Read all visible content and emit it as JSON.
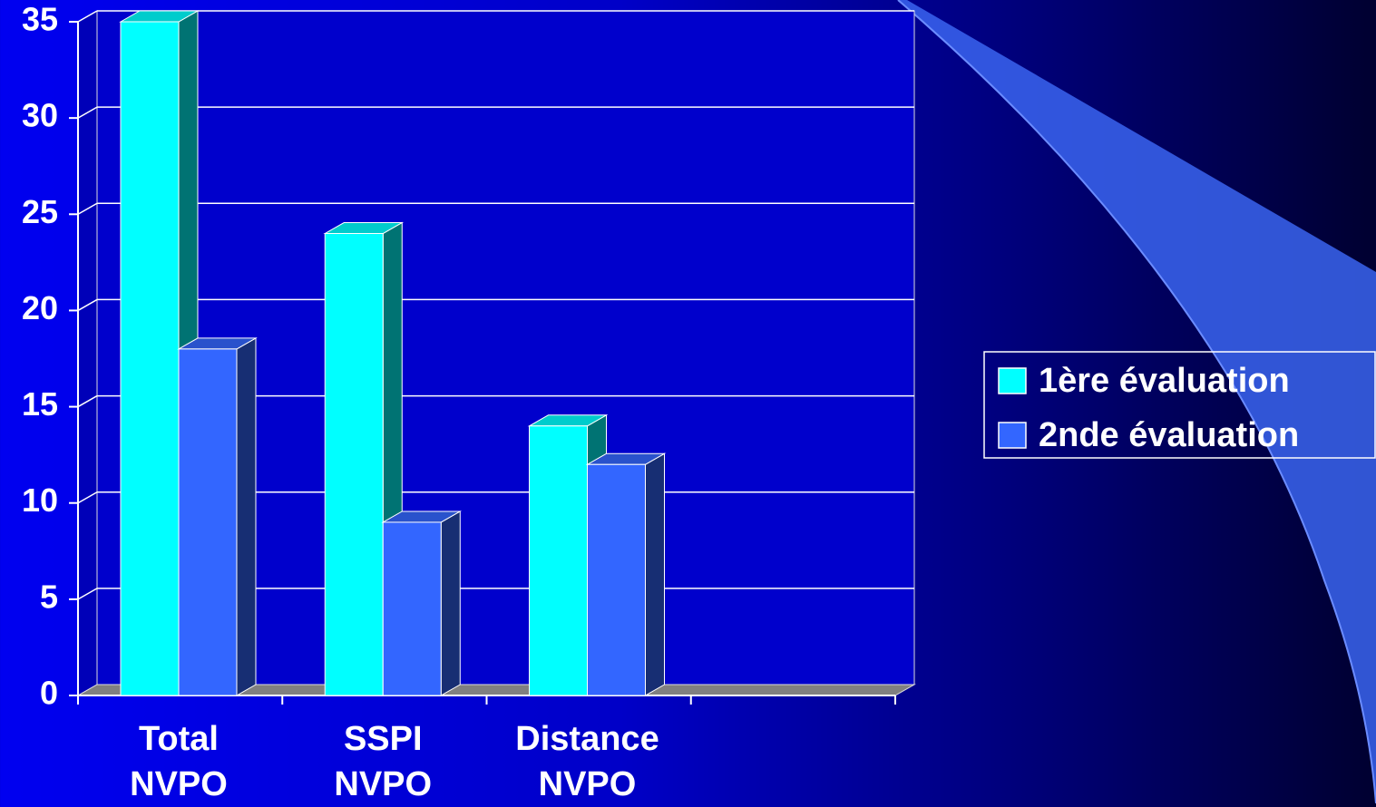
{
  "chart_data": {
    "type": "bar3d",
    "categories": [
      "Total NVPO",
      "SSPI NVPO",
      "Distance NVPO",
      null
    ],
    "series": [
      {
        "name": "1ère évaluation",
        "color": "#00ffff",
        "values": [
          35,
          24,
          14,
          null
        ]
      },
      {
        "name": "2nde évaluation",
        "color": "#3366ff",
        "values": [
          18,
          9,
          12,
          null
        ]
      }
    ],
    "ylim": [
      0,
      35
    ],
    "yticks": [
      0,
      5,
      10,
      15,
      20,
      25,
      30,
      35
    ],
    "grid": true,
    "legend": "right"
  }
}
